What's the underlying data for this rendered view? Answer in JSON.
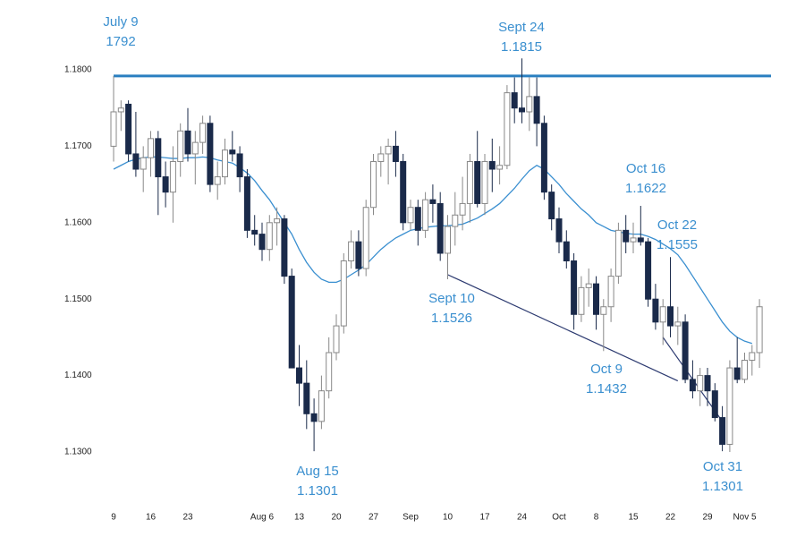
{
  "chart_data": {
    "type": "candlestick",
    "categories": [
      "9",
      null,
      null,
      null,
      null,
      "16",
      null,
      null,
      null,
      null,
      "23",
      null,
      null,
      null,
      null,
      null,
      null,
      null,
      null,
      null,
      "Aug 6",
      null,
      null,
      null,
      null,
      "13",
      null,
      null,
      null,
      null,
      "20",
      null,
      null,
      null,
      null,
      "27",
      null,
      null,
      null,
      null,
      "Sep",
      null,
      null,
      null,
      null,
      "10",
      null,
      null,
      null,
      null,
      "17",
      null,
      null,
      null,
      null,
      "24",
      null,
      null,
      null,
      null,
      "Oct",
      null,
      null,
      null,
      null,
      "8",
      null,
      null,
      null,
      null,
      "15",
      null,
      null,
      null,
      null,
      "22",
      null,
      null,
      null,
      null,
      "29",
      null,
      null,
      null,
      null,
      "Nov 5",
      null,
      null
    ],
    "ohlc": [
      [
        1.17,
        1.1792,
        1.168,
        1.1745
      ],
      [
        1.1745,
        1.176,
        1.172,
        1.175
      ],
      [
        1.1755,
        1.176,
        1.168,
        1.169
      ],
      [
        1.169,
        1.1745,
        1.166,
        1.167
      ],
      [
        1.167,
        1.17,
        1.164,
        1.1685
      ],
      [
        1.1685,
        1.172,
        1.166,
        1.171
      ],
      [
        1.171,
        1.172,
        1.161,
        1.166
      ],
      [
        1.166,
        1.168,
        1.162,
        1.164
      ],
      [
        1.164,
        1.17,
        1.16,
        1.168
      ],
      [
        1.168,
        1.173,
        1.166,
        1.172
      ],
      [
        1.172,
        1.175,
        1.168,
        1.169
      ],
      [
        1.169,
        1.172,
        1.165,
        1.1705
      ],
      [
        1.1705,
        1.174,
        1.169,
        1.173
      ],
      [
        1.173,
        1.174,
        1.164,
        1.165
      ],
      [
        1.165,
        1.168,
        1.163,
        1.166
      ],
      [
        1.166,
        1.171,
        1.165,
        1.1695
      ],
      [
        1.1695,
        1.172,
        1.168,
        1.169
      ],
      [
        1.169,
        1.17,
        1.164,
        1.166
      ],
      [
        1.166,
        1.167,
        1.158,
        1.159
      ],
      [
        1.159,
        1.161,
        1.157,
        1.1585
      ],
      [
        1.1585,
        1.16,
        1.155,
        1.1565
      ],
      [
        1.1565,
        1.161,
        1.155,
        1.16
      ],
      [
        1.16,
        1.162,
        1.157,
        1.1605
      ],
      [
        1.1605,
        1.161,
        1.152,
        1.153
      ],
      [
        1.153,
        1.154,
        1.141,
        1.141
      ],
      [
        1.141,
        1.144,
        1.136,
        1.139
      ],
      [
        1.139,
        1.142,
        1.133,
        1.135
      ],
      [
        1.135,
        1.137,
        1.1301,
        1.134
      ],
      [
        1.134,
        1.14,
        1.133,
        1.138
      ],
      [
        1.138,
        1.145,
        1.137,
        1.143
      ],
      [
        1.143,
        1.148,
        1.142,
        1.1465
      ],
      [
        1.1465,
        1.156,
        1.1455,
        1.155
      ],
      [
        1.155,
        1.159,
        1.154,
        1.1575
      ],
      [
        1.1575,
        1.159,
        1.153,
        1.154
      ],
      [
        1.154,
        1.163,
        1.153,
        1.162
      ],
      [
        1.162,
        1.169,
        1.161,
        1.168
      ],
      [
        1.168,
        1.17,
        1.166,
        1.169
      ],
      [
        1.169,
        1.171,
        1.165,
        1.17
      ],
      [
        1.17,
        1.172,
        1.166,
        1.168
      ],
      [
        1.168,
        1.169,
        1.159,
        1.16
      ],
      [
        1.16,
        1.163,
        1.159,
        1.162
      ],
      [
        1.162,
        1.163,
        1.157,
        1.159
      ],
      [
        1.159,
        1.164,
        1.158,
        1.163
      ],
      [
        1.163,
        1.165,
        1.16,
        1.1625
      ],
      [
        1.1625,
        1.164,
        1.155,
        1.156
      ],
      [
        1.156,
        1.161,
        1.1526,
        1.1595
      ],
      [
        1.1595,
        1.164,
        1.157,
        1.161
      ],
      [
        1.161,
        1.166,
        1.159,
        1.1625
      ],
      [
        1.1625,
        1.169,
        1.16,
        1.168
      ],
      [
        1.168,
        1.172,
        1.162,
        1.1625
      ],
      [
        1.1625,
        1.169,
        1.161,
        1.168
      ],
      [
        1.168,
        1.171,
        1.164,
        1.167
      ],
      [
        1.167,
        1.17,
        1.165,
        1.1675
      ],
      [
        1.1675,
        1.178,
        1.167,
        1.177
      ],
      [
        1.177,
        1.179,
        1.173,
        1.175
      ],
      [
        1.175,
        1.1815,
        1.173,
        1.1745
      ],
      [
        1.1745,
        1.179,
        1.172,
        1.1765
      ],
      [
        1.1765,
        1.179,
        1.17,
        1.173
      ],
      [
        1.173,
        1.174,
        1.163,
        1.164
      ],
      [
        1.164,
        1.165,
        1.159,
        1.1605
      ],
      [
        1.1605,
        1.162,
        1.156,
        1.1575
      ],
      [
        1.1575,
        1.159,
        1.154,
        1.155
      ],
      [
        1.155,
        1.156,
        1.146,
        1.148
      ],
      [
        1.148,
        1.153,
        1.147,
        1.1515
      ],
      [
        1.1515,
        1.154,
        1.149,
        1.152
      ],
      [
        1.152,
        1.153,
        1.146,
        1.148
      ],
      [
        1.148,
        1.15,
        1.1432,
        1.149
      ],
      [
        1.149,
        1.154,
        1.147,
        1.153
      ],
      [
        1.153,
        1.16,
        1.152,
        1.159
      ],
      [
        1.159,
        1.161,
        1.156,
        1.1575
      ],
      [
        1.1575,
        1.16,
        1.156,
        1.158
      ],
      [
        1.158,
        1.1622,
        1.157,
        1.1575
      ],
      [
        1.1575,
        1.158,
        1.149,
        1.15
      ],
      [
        1.15,
        1.152,
        1.146,
        1.147
      ],
      [
        1.147,
        1.15,
        1.144,
        1.149
      ],
      [
        1.149,
        1.1555,
        1.145,
        1.1465
      ],
      [
        1.1465,
        1.149,
        1.144,
        1.147
      ],
      [
        1.147,
        1.148,
        1.139,
        1.1395
      ],
      [
        1.1395,
        1.142,
        1.137,
        1.138
      ],
      [
        1.138,
        1.141,
        1.136,
        1.14
      ],
      [
        1.14,
        1.141,
        1.136,
        1.138
      ],
      [
        1.138,
        1.139,
        1.134,
        1.1345
      ],
      [
        1.1345,
        1.136,
        1.1301,
        1.131
      ],
      [
        1.131,
        1.142,
        1.13,
        1.141
      ],
      [
        1.141,
        1.145,
        1.139,
        1.1395
      ],
      [
        1.1395,
        1.143,
        1.139,
        1.142
      ],
      [
        1.142,
        1.144,
        1.14,
        1.143
      ],
      [
        1.143,
        1.15,
        1.141,
        1.149
      ]
    ],
    "moving_average": {
      "color": "#3a8fd0",
      "values": [
        1.167,
        1.1675,
        1.168,
        1.1683,
        1.1685,
        1.1686,
        1.1686,
        1.1685,
        1.1684,
        1.1684,
        1.1685,
        1.1685,
        1.1686,
        1.1685,
        1.1682,
        1.168,
        1.1678,
        1.1672,
        1.1665,
        1.1655,
        1.1642,
        1.163,
        1.1615,
        1.16,
        1.1585,
        1.1565,
        1.1548,
        1.1535,
        1.1526,
        1.1522,
        1.1522,
        1.1526,
        1.1532,
        1.1538,
        1.1545,
        1.1555,
        1.1565,
        1.1573,
        1.158,
        1.1585,
        1.159,
        1.1592,
        1.1594,
        1.1595,
        1.1596,
        1.1596,
        1.1597,
        1.1598,
        1.1602,
        1.1606,
        1.1612,
        1.1618,
        1.1625,
        1.1635,
        1.1645,
        1.1657,
        1.1668,
        1.1675,
        1.167,
        1.166,
        1.165,
        1.1638,
        1.1628,
        1.1618,
        1.161,
        1.16,
        1.1595,
        1.159,
        1.1588,
        1.1586,
        1.1585,
        1.1585,
        1.1582,
        1.1578,
        1.1572,
        1.1566,
        1.1558,
        1.1545,
        1.153,
        1.1515,
        1.15,
        1.1485,
        1.147,
        1.1458,
        1.145,
        1.1445,
        1.1442,
        null
      ]
    },
    "up_color": "#ffffff",
    "down_color": "#1a2a4a",
    "resistance": {
      "value": 1.1792,
      "color": "#2a7fc0"
    },
    "trendlines": [
      {
        "x": [
          45,
          76
        ],
        "y": [
          1.1532,
          1.1393
        ],
        "color": "#2c3a70"
      },
      {
        "x": [
          74,
          82
        ],
        "y": [
          1.145,
          1.134
        ],
        "color": "#2c3a70"
      }
    ],
    "ylim": [
      1.13,
      1.18
    ],
    "yticks": [
      {
        "value": 1.13,
        "label": "1.1300"
      },
      {
        "value": 1.14,
        "label": "1.1400"
      },
      {
        "value": 1.15,
        "label": "1.1500"
      },
      {
        "value": 1.16,
        "label": "1.1600"
      },
      {
        "value": 1.17,
        "label": "1.1700"
      },
      {
        "value": 1.18,
        "label": "1.1800"
      }
    ],
    "annotations": [
      {
        "date": "July 9",
        "price": "1792"
      },
      {
        "date": "Sept 24",
        "price": "1.1815"
      },
      {
        "date": "Oct 16",
        "price": "1.1622"
      },
      {
        "date": "Oct 22",
        "price": "1.1555"
      },
      {
        "date": "Sept 10",
        "price": "1.1526"
      },
      {
        "date": "Oct 9",
        "price": "1.1432"
      },
      {
        "date": "Aug 15",
        "price": "1.1301"
      },
      {
        "date": "Oct 31",
        "price": "1.1301"
      }
    ]
  }
}
